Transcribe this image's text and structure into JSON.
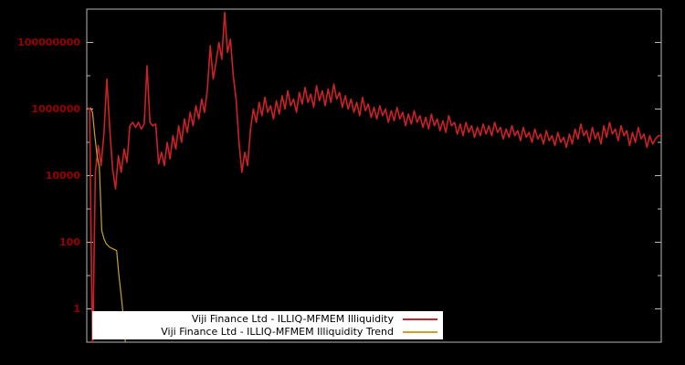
{
  "chart_data": {
    "type": "line",
    "title": "",
    "xlabel": "",
    "ylabel": "",
    "y_scale": "log",
    "ylim_log10": [
      -1,
      9
    ],
    "grid": false,
    "background": "#000000",
    "frame_color": "#b8b8b8",
    "tick_label_color": "#9b0000",
    "y_ticks": [
      {
        "label": "100000000",
        "log10": 8
      },
      {
        "label": "1000000",
        "log10": 6
      },
      {
        "label": "10000",
        "log10": 4
      },
      {
        "label": "100",
        "log10": 2
      },
      {
        "label": "1",
        "log10": 0
      }
    ],
    "series": [
      {
        "name": "Viji Finance Ltd - ILLIQ-MFMEM Illiquidity",
        "color": "#cc2128",
        "width": 1.6,
        "log10_values": [
          6.05,
          6.0,
          -1.5,
          4.1,
          4.9,
          4.3,
          5.3,
          6.9,
          5.4,
          4.2,
          3.6,
          4.6,
          4.1,
          4.8,
          4.4,
          5.5,
          5.6,
          5.45,
          5.6,
          5.4,
          5.55,
          7.3,
          5.6,
          5.5,
          5.55,
          4.35,
          4.7,
          4.3,
          5.0,
          4.5,
          5.2,
          4.8,
          5.5,
          5.0,
          5.7,
          5.3,
          5.9,
          5.5,
          6.1,
          5.7,
          6.3,
          5.9,
          6.6,
          7.9,
          6.9,
          7.4,
          8.0,
          7.5,
          8.9,
          7.7,
          8.1,
          7.0,
          6.3,
          5.0,
          4.1,
          4.7,
          4.3,
          5.4,
          6.0,
          5.6,
          6.2,
          5.8,
          6.35,
          5.9,
          6.1,
          5.7,
          6.25,
          5.85,
          6.4,
          6.0,
          6.55,
          6.1,
          6.3,
          5.9,
          6.5,
          6.15,
          6.65,
          6.2,
          6.45,
          6.05,
          6.7,
          6.25,
          6.55,
          6.1,
          6.6,
          6.2,
          6.75,
          6.3,
          6.5,
          6.05,
          6.4,
          6.0,
          6.3,
          5.9,
          6.2,
          5.8,
          6.35,
          5.95,
          6.15,
          5.75,
          6.05,
          5.7,
          6.1,
          5.8,
          6.0,
          5.6,
          5.95,
          5.65,
          6.05,
          5.7,
          5.9,
          5.5,
          5.85,
          5.55,
          5.95,
          5.6,
          5.8,
          5.45,
          5.75,
          5.4,
          5.85,
          5.5,
          5.7,
          5.35,
          5.65,
          5.3,
          5.8,
          5.5,
          5.6,
          5.25,
          5.55,
          5.2,
          5.6,
          5.3,
          5.5,
          5.15,
          5.45,
          5.2,
          5.55,
          5.25,
          5.5,
          5.2,
          5.6,
          5.3,
          5.45,
          5.1,
          5.4,
          5.15,
          5.5,
          5.2,
          5.35,
          5.05,
          5.45,
          5.15,
          5.3,
          5.0,
          5.4,
          5.1,
          5.25,
          4.95,
          5.35,
          5.05,
          5.2,
          4.9,
          5.3,
          5.0,
          5.15,
          4.85,
          5.25,
          4.95,
          5.4,
          5.1,
          5.55,
          5.2,
          5.35,
          5.0,
          5.45,
          5.1,
          5.3,
          4.95,
          5.5,
          5.15,
          5.6,
          5.25,
          5.4,
          5.05,
          5.5,
          5.2,
          5.35,
          4.9,
          5.3,
          5.0,
          5.45,
          5.1,
          5.25,
          4.85,
          5.2,
          4.95,
          5.1,
          5.2,
          5.2
        ]
      },
      {
        "name": "Viji Finance Ltd - ILLIQ-MFMEM Illiquidity Trend",
        "color": "#c9a227",
        "width": 1.2,
        "points": [
          [
            0.006,
            6.05
          ],
          [
            0.01,
            5.9
          ],
          [
            0.014,
            5.2
          ],
          [
            0.018,
            4.6
          ],
          [
            0.022,
            4.25
          ],
          [
            0.026,
            2.35
          ],
          [
            0.03,
            2.1
          ],
          [
            0.034,
            1.95
          ],
          [
            0.04,
            1.85
          ],
          [
            0.046,
            1.8
          ],
          [
            0.052,
            1.75
          ],
          [
            0.056,
            1.0
          ],
          [
            0.06,
            0.4
          ],
          [
            0.064,
            -0.3
          ],
          [
            0.068,
            -1.2
          ]
        ]
      }
    ],
    "legend": {
      "position": "bottom-center",
      "entries": [
        {
          "label": "Viji Finance Ltd - ILLIQ-MFMEM Illiquidity",
          "color": "#cc2128"
        },
        {
          "label": "Viji Finance Ltd - ILLIQ-MFMEM Illiquidity Trend",
          "color": "#c9a227"
        }
      ]
    }
  }
}
